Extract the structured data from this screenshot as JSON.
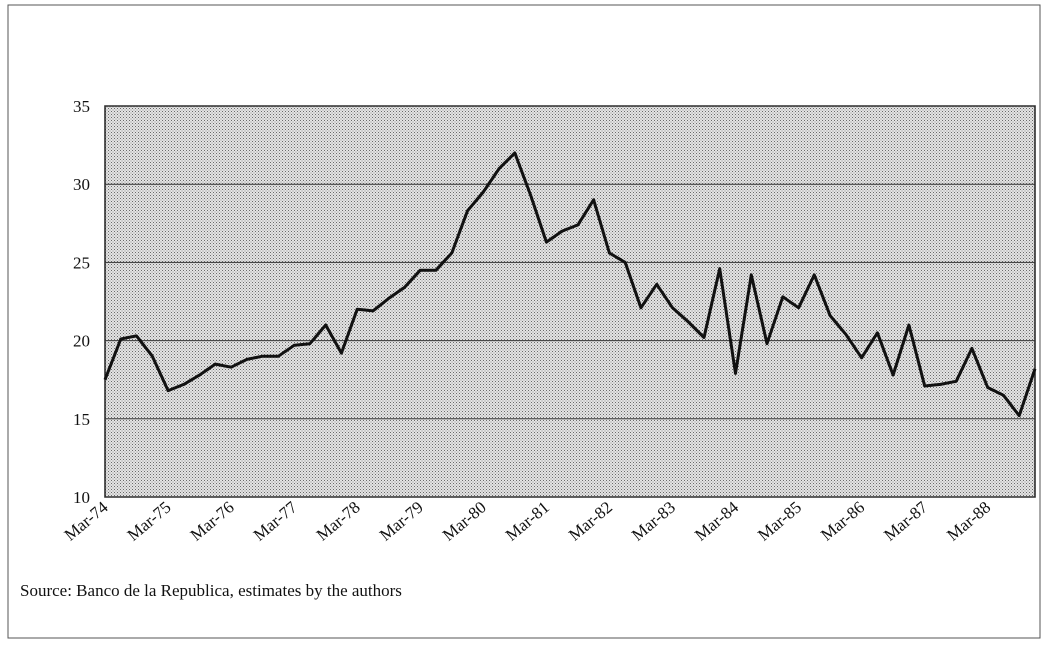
{
  "chart_data": {
    "type": "line",
    "source": "Source:  Banco de la Republica, estimates by the authors",
    "categories": [
      "Mar-74",
      null,
      null,
      null,
      "Mar-75",
      null,
      null,
      null,
      "Mar-76",
      null,
      null,
      null,
      "Mar-77",
      null,
      null,
      null,
      "Mar-78",
      null,
      null,
      null,
      "Mar-79",
      null,
      null,
      null,
      "Mar-80",
      null,
      null,
      null,
      "Mar-81",
      null,
      null,
      null,
      "Mar-82",
      null,
      null,
      null,
      "Mar-83",
      null,
      null,
      null,
      "Mar-84",
      null,
      null,
      null,
      "Mar-85",
      null,
      null,
      null,
      "Mar-86",
      null,
      null,
      null,
      "Mar-87",
      null,
      null,
      null,
      "Mar-88",
      null,
      null,
      null
    ],
    "values": [
      17.5,
      20.1,
      20.3,
      19.0,
      16.8,
      17.2,
      17.8,
      18.5,
      18.3,
      18.8,
      19.0,
      19.0,
      19.7,
      19.8,
      21.0,
      19.2,
      22.0,
      21.9,
      22.7,
      23.4,
      24.5,
      24.5,
      25.6,
      28.3,
      29.5,
      31.0,
      32.0,
      29.3,
      26.3,
      27.0,
      27.4,
      29.0,
      25.6,
      25.0,
      22.1,
      23.6,
      22.1,
      21.2,
      20.2,
      24.6,
      17.9,
      24.2,
      19.8,
      22.8,
      22.1,
      24.2,
      21.6,
      20.4,
      18.9,
      20.5,
      17.8,
      21.0,
      17.1,
      17.2,
      17.4,
      19.5,
      17.0,
      16.5,
      15.2,
      18.2
    ],
    "color": "#111111",
    "ylim": [
      10,
      35
    ],
    "yticks": [
      10,
      15,
      20,
      25,
      30,
      35
    ],
    "grid": true
  }
}
